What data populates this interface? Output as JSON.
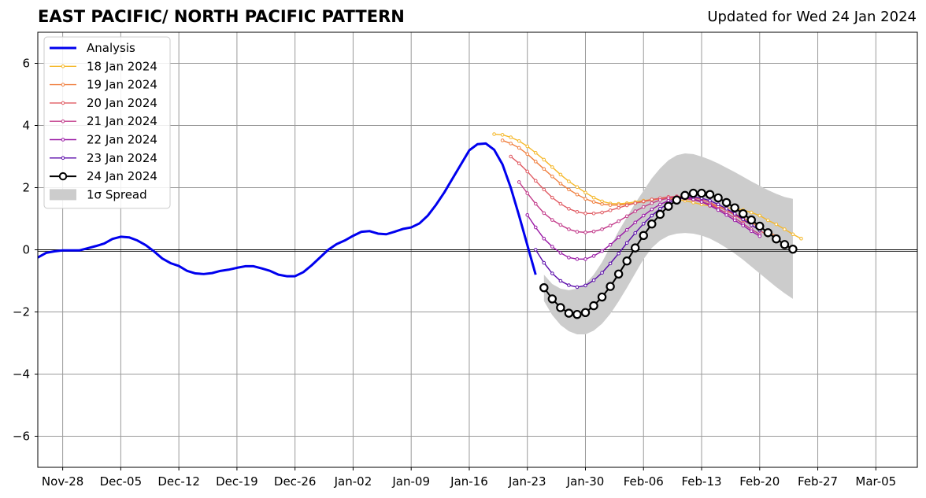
{
  "title": "EAST PACIFIC/ NORTH PACIFIC PATTERN",
  "subtitle": "Updated for Wed 24 Jan 2024",
  "chart_data": {
    "type": "line",
    "x_axis": {
      "range": [
        "2023-11-25",
        "2024-03-10"
      ],
      "ticks": [
        "2023-11-28",
        "2023-12-05",
        "2023-12-12",
        "2023-12-19",
        "2023-12-26",
        "2024-01-02",
        "2024-01-09",
        "2024-01-16",
        "2024-01-23",
        "2024-01-30",
        "2024-02-06",
        "2024-02-13",
        "2024-02-20",
        "2024-02-27",
        "2024-03-05"
      ],
      "tick_labels": [
        "Nov-28",
        "Dec-05",
        "Dec-12",
        "Dec-19",
        "Dec-26",
        "Jan-02",
        "Jan-09",
        "Jan-16",
        "Jan-23",
        "Jan-30",
        "Feb-06",
        "Feb-13",
        "Feb-20",
        "Feb-27",
        "Mar-05"
      ]
    },
    "y_axis": {
      "range": [
        -7,
        7
      ],
      "ticks": [
        -6,
        -4,
        -2,
        0,
        2,
        4,
        6
      ],
      "tick_labels": [
        "−6",
        "−4",
        "−2",
        "0",
        "2",
        "4",
        "6"
      ]
    },
    "grid": true,
    "legend_position": "top-left",
    "analysis": {
      "name": "Analysis",
      "color": "#0000ee",
      "x_start": "2023-11-25",
      "values": [
        -0.25,
        -0.1,
        -0.05,
        -0.02,
        -0.02,
        -0.02,
        0.05,
        0.12,
        0.2,
        0.35,
        0.42,
        0.4,
        0.3,
        0.15,
        -0.05,
        -0.28,
        -0.43,
        -0.52,
        -0.68,
        -0.76,
        -0.78,
        -0.75,
        -0.68,
        -0.64,
        -0.58,
        -0.53,
        -0.53,
        -0.6,
        -0.68,
        -0.8,
        -0.85,
        -0.85,
        -0.72,
        -0.5,
        -0.25,
        0.0,
        0.18,
        0.3,
        0.45,
        0.58,
        0.6,
        0.52,
        0.5,
        0.58,
        0.67,
        0.72,
        0.85,
        1.1,
        1.45,
        1.85,
        2.3,
        2.75,
        3.2,
        3.4,
        3.42,
        3.22,
        2.75,
        2.0,
        1.1,
        0.15,
        -0.8
      ]
    },
    "forecasts": [
      {
        "name": "18 Jan 2024",
        "color": "#f5b82a",
        "x_start": "2024-01-19",
        "values": [
          3.72,
          3.7,
          3.62,
          3.5,
          3.33,
          3.12,
          2.9,
          2.66,
          2.42,
          2.2,
          2.02,
          1.84,
          1.68,
          1.56,
          1.49,
          1.48,
          1.5,
          1.54,
          1.58,
          1.62,
          1.64,
          1.64,
          1.62,
          1.58,
          1.52,
          1.46,
          1.41,
          1.38,
          1.35,
          1.32,
          1.28,
          1.2,
          1.1,
          0.95,
          0.82,
          0.66,
          0.5,
          0.36
        ]
      },
      {
        "name": "19 Jan 2024",
        "color": "#f08040",
        "x_start": "2024-01-20",
        "values": [
          3.52,
          3.42,
          3.28,
          3.08,
          2.84,
          2.6,
          2.36,
          2.13,
          1.94,
          1.78,
          1.64,
          1.54,
          1.47,
          1.44,
          1.44,
          1.46,
          1.5,
          1.55,
          1.6,
          1.64,
          1.66,
          1.66,
          1.64,
          1.6,
          1.54,
          1.47,
          1.38,
          1.28,
          1.16,
          1.02,
          0.88,
          0.72,
          0.58,
          0.44
        ]
      },
      {
        "name": "20 Jan 2024",
        "color": "#e05a62",
        "x_start": "2024-01-21",
        "values": [
          3.0,
          2.78,
          2.52,
          2.22,
          1.94,
          1.68,
          1.48,
          1.32,
          1.22,
          1.17,
          1.17,
          1.2,
          1.27,
          1.35,
          1.43,
          1.5,
          1.56,
          1.62,
          1.66,
          1.7,
          1.72,
          1.72,
          1.68,
          1.62,
          1.52,
          1.4,
          1.26,
          1.12,
          0.95,
          0.8,
          0.62,
          0.46
        ]
      },
      {
        "name": "21 Jan 2024",
        "color": "#c23a8a",
        "x_start": "2024-01-22",
        "values": [
          2.18,
          1.82,
          1.48,
          1.18,
          0.96,
          0.8,
          0.66,
          0.58,
          0.56,
          0.59,
          0.66,
          0.78,
          0.92,
          1.08,
          1.24,
          1.38,
          1.5,
          1.6,
          1.66,
          1.7,
          1.68,
          1.64,
          1.56,
          1.46,
          1.32,
          1.18,
          1.02,
          0.84,
          0.66,
          0.5
        ]
      },
      {
        "name": "22 Jan 2024",
        "color": "#9a1aa6",
        "x_start": "2024-01-23",
        "values": [
          1.12,
          0.72,
          0.36,
          0.1,
          -0.1,
          -0.25,
          -0.3,
          -0.3,
          -0.2,
          -0.04,
          0.16,
          0.4,
          0.64,
          0.88,
          1.1,
          1.3,
          1.46,
          1.58,
          1.65,
          1.66,
          1.62,
          1.54,
          1.42,
          1.28,
          1.12,
          0.95,
          0.78,
          0.6,
          0.44
        ]
      },
      {
        "name": "23 Jan 2024",
        "color": "#5a0aaa",
        "x_start": "2024-01-24",
        "values": [
          0.0,
          -0.42,
          -0.76,
          -1.0,
          -1.14,
          -1.2,
          -1.15,
          -0.98,
          -0.74,
          -0.44,
          -0.12,
          0.22,
          0.54,
          0.84,
          1.1,
          1.32,
          1.5,
          1.62,
          1.68,
          1.7,
          1.66,
          1.58,
          1.46,
          1.32,
          1.16,
          0.98,
          0.8,
          0.62
        ]
      }
    ],
    "latest": {
      "name": "24 Jan 2024",
      "x_start": "2024-01-25",
      "values": [
        -1.22,
        -1.58,
        -1.86,
        -2.04,
        -2.08,
        -2.02,
        -1.8,
        -1.52,
        -1.18,
        -0.78,
        -0.36,
        0.06,
        0.46,
        0.83,
        1.14,
        1.4,
        1.6,
        1.75,
        1.82,
        1.82,
        1.78,
        1.67,
        1.52,
        1.35,
        1.16,
        0.96,
        0.76,
        0.55,
        0.35,
        0.17,
        0.02
      ]
    },
    "spread": {
      "name": "1σ Spread",
      "color": "#cccccc",
      "x_start": "2024-01-25",
      "upper": [
        -0.8,
        -1.1,
        -1.25,
        -1.3,
        -1.25,
        -1.1,
        -0.8,
        -0.4,
        0.1,
        0.6,
        1.05,
        1.5,
        1.9,
        2.3,
        2.62,
        2.88,
        3.04,
        3.1,
        3.08,
        3.0,
        2.9,
        2.78,
        2.64,
        2.5,
        2.35,
        2.2,
        2.06,
        1.92,
        1.8,
        1.7,
        1.64
      ],
      "lower": [
        -1.65,
        -2.1,
        -2.42,
        -2.62,
        -2.72,
        -2.72,
        -2.6,
        -2.38,
        -2.06,
        -1.66,
        -1.22,
        -0.76,
        -0.3,
        0.06,
        0.3,
        0.45,
        0.52,
        0.54,
        0.52,
        0.46,
        0.36,
        0.22,
        0.06,
        -0.12,
        -0.32,
        -0.54,
        -0.76,
        -0.98,
        -1.2,
        -1.4,
        -1.58
      ]
    }
  }
}
